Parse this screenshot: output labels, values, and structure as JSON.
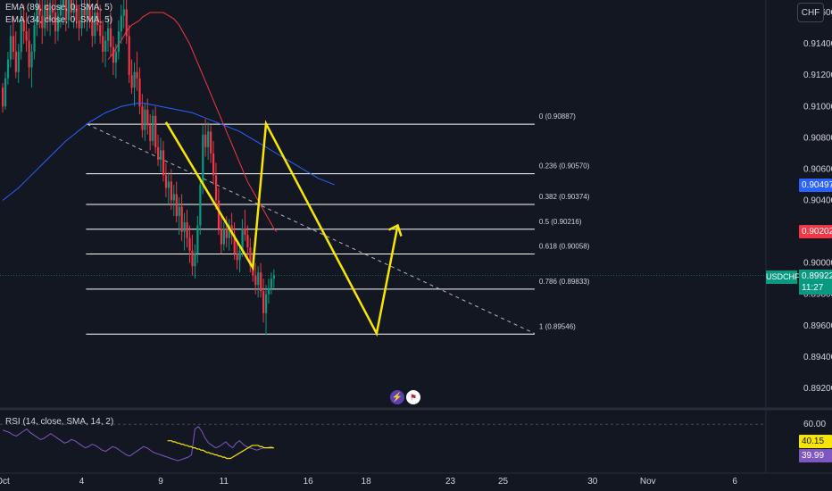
{
  "indicators": {
    "ema89": "EMA (89, close, 0, SMA, 5)",
    "ema34": "EMA (34, close, 0, SMA, 5)",
    "rsi": "RSI (14, close, SMA, 14, 2)"
  },
  "currency_button": "CHF",
  "symbol_tag": "USDCHF",
  "current_price": {
    "value": "0.89922",
    "countdown": "11:27",
    "color": "#089981"
  },
  "price_tags": [
    {
      "value": "0.90497",
      "color": "#2962ff",
      "price": 0.90497
    },
    {
      "value": "0.90202",
      "color": "#f23645",
      "price": 0.90202
    }
  ],
  "rsi_tags": [
    {
      "value": "40.15",
      "color": "#f7e600",
      "text_color": "#131722",
      "level": 40.15
    },
    {
      "value": "39.99",
      "color": "#7e57c2",
      "text_color": "#ffffff",
      "level": 39.99
    }
  ],
  "news_icons": [
    "lightning-icon",
    "us-flag-icon"
  ],
  "colors": {
    "up": "#089981",
    "down": "#f23645",
    "ema34": "#f23645",
    "ema89": "#2962ff",
    "pattern": "#f7e600",
    "fib": "#ffffff",
    "rsi": "#7e57c2",
    "rsi_ma": "#f7e600"
  },
  "chart_data": {
    "type": "candlestick",
    "symbol": "USDCHF",
    "y_axis_ticks": [
      0.916,
      0.914,
      0.912,
      0.91,
      0.908,
      0.906,
      0.904,
      0.902,
      0.9,
      0.898,
      0.896,
      0.894,
      0.892
    ],
    "y_axis_labels": [
      "0.91600",
      "0.91400",
      "0.91200",
      "0.91000",
      "0.90800",
      "0.90600",
      "0.90400",
      "0.90200",
      "0.90000",
      "0.89800",
      "0.89600",
      "0.89400",
      "0.89200"
    ],
    "ylim": [
      0.8908,
      0.9168
    ],
    "x_axis_labels": [
      {
        "label": "Oct",
        "bar": 0
      },
      {
        "label": "4",
        "bar": 30
      },
      {
        "label": "9",
        "bar": 60
      },
      {
        "label": "11",
        "bar": 84
      },
      {
        "label": "16",
        "bar": 116
      },
      {
        "label": "18",
        "bar": 138
      },
      {
        "label": "23",
        "bar": 170
      },
      {
        "label": "25",
        "bar": 190
      },
      {
        "label": "30",
        "bar": 224
      },
      {
        "label": "Nov",
        "bar": 245
      },
      {
        "label": "6",
        "bar": 278
      }
    ],
    "fib_levels": [
      {
        "ratio": "0",
        "price": 0.90887,
        "label": "0 (0.90887)"
      },
      {
        "ratio": "0.236",
        "price": 0.9057,
        "label": "0.236 (0.90570)"
      },
      {
        "ratio": "0.382",
        "price": 0.90374,
        "label": "0.382 (0.90374)"
      },
      {
        "ratio": "0.5",
        "price": 0.90216,
        "label": "0.5 (0.90216)"
      },
      {
        "ratio": "0.618",
        "price": 0.90058,
        "label": "0.618 (0.90058)"
      },
      {
        "ratio": "0.786",
        "price": 0.89833,
        "label": "0.786 (0.89833)"
      },
      {
        "ratio": "1",
        "price": 0.89546,
        "label": "1 (0.89546)"
      }
    ],
    "fib_range_bars": [
      32,
      202
    ],
    "candles": [
      [
        0.9112,
        0.9115,
        0.9096,
        0.91
      ],
      [
        0.91,
        0.9122,
        0.9098,
        0.9118
      ],
      [
        0.9118,
        0.9135,
        0.9114,
        0.913
      ],
      [
        0.913,
        0.9152,
        0.9125,
        0.9145
      ],
      [
        0.9145,
        0.9158,
        0.913,
        0.9135
      ],
      [
        0.9135,
        0.9148,
        0.9118,
        0.9122
      ],
      [
        0.9122,
        0.914,
        0.9115,
        0.9135
      ],
      [
        0.9135,
        0.9162,
        0.913,
        0.9155
      ],
      [
        0.9155,
        0.9165,
        0.914,
        0.9148
      ],
      [
        0.9148,
        0.916,
        0.9135,
        0.9142
      ],
      [
        0.9142,
        0.915,
        0.9118,
        0.9125
      ],
      [
        0.9125,
        0.914,
        0.9112,
        0.9135
      ],
      [
        0.9135,
        0.916,
        0.913,
        0.9152
      ],
      [
        0.9152,
        0.9172,
        0.9145,
        0.9165
      ],
      [
        0.9165,
        0.9175,
        0.915,
        0.9158
      ],
      [
        0.9158,
        0.9168,
        0.914,
        0.915
      ],
      [
        0.915,
        0.9172,
        0.9145,
        0.9165
      ],
      [
        0.9165,
        0.9175,
        0.9148,
        0.9155
      ],
      [
        0.9155,
        0.917,
        0.9145,
        0.9162
      ],
      [
        0.9162,
        0.9175,
        0.9152,
        0.916
      ],
      [
        0.916,
        0.9168,
        0.914,
        0.9148
      ],
      [
        0.9148,
        0.9165,
        0.9142,
        0.9158
      ],
      [
        0.9158,
        0.9175,
        0.915,
        0.9165
      ],
      [
        0.9165,
        0.9178,
        0.9152,
        0.917
      ],
      [
        0.917,
        0.9176,
        0.9148,
        0.9155
      ],
      [
        0.9155,
        0.917,
        0.915,
        0.9168
      ],
      [
        0.9168,
        0.9176,
        0.9155,
        0.916
      ],
      [
        0.916,
        0.9172,
        0.915,
        0.9165
      ],
      [
        0.9165,
        0.9172,
        0.915,
        0.9155
      ],
      [
        0.9155,
        0.9165,
        0.9142,
        0.915
      ],
      [
        0.915,
        0.9168,
        0.9145,
        0.9162
      ],
      [
        0.9162,
        0.9172,
        0.915,
        0.9158
      ],
      [
        0.9158,
        0.917,
        0.9148,
        0.9165
      ],
      [
        0.9165,
        0.9176,
        0.915,
        0.9155
      ],
      [
        0.9155,
        0.9162,
        0.9138,
        0.9145
      ],
      [
        0.9145,
        0.9165,
        0.914,
        0.916
      ],
      [
        0.916,
        0.9176,
        0.9148,
        0.9152
      ],
      [
        0.9152,
        0.9165,
        0.914,
        0.9145
      ],
      [
        0.9145,
        0.9155,
        0.9128,
        0.9135
      ],
      [
        0.9135,
        0.9148,
        0.9125,
        0.9142
      ],
      [
        0.9142,
        0.9158,
        0.9135,
        0.915
      ],
      [
        0.915,
        0.916,
        0.9132,
        0.9138
      ],
      [
        0.9138,
        0.9145,
        0.912,
        0.9128
      ],
      [
        0.9128,
        0.914,
        0.9118,
        0.9135
      ],
      [
        0.9135,
        0.9155,
        0.913,
        0.9148
      ],
      [
        0.9148,
        0.9165,
        0.914,
        0.9158
      ],
      [
        0.9158,
        0.9176,
        0.915,
        0.9162
      ],
      [
        0.9162,
        0.917,
        0.914,
        0.9145
      ],
      [
        0.9145,
        0.9152,
        0.9115,
        0.912
      ],
      [
        0.912,
        0.913,
        0.9108,
        0.9112
      ],
      [
        0.9112,
        0.9128,
        0.91,
        0.9122
      ],
      [
        0.9122,
        0.9135,
        0.911,
        0.9118
      ],
      [
        0.9118,
        0.9125,
        0.9095,
        0.91
      ],
      [
        0.91,
        0.9108,
        0.908,
        0.9085
      ],
      [
        0.9085,
        0.9102,
        0.9078,
        0.9098
      ],
      [
        0.9098,
        0.9105,
        0.9082,
        0.9088
      ],
      [
        0.9088,
        0.9095,
        0.9072,
        0.9078
      ],
      [
        0.9078,
        0.9098,
        0.9075,
        0.9094
      ],
      [
        0.9094,
        0.91,
        0.907,
        0.9074
      ],
      [
        0.9074,
        0.9082,
        0.9062,
        0.9066
      ],
      [
        0.9066,
        0.908,
        0.9058,
        0.9072
      ],
      [
        0.9072,
        0.9078,
        0.9052,
        0.9056
      ],
      [
        0.9056,
        0.9064,
        0.9042,
        0.9048
      ],
      [
        0.9048,
        0.9058,
        0.9038,
        0.9052
      ],
      [
        0.9052,
        0.906,
        0.9034,
        0.904
      ],
      [
        0.904,
        0.905,
        0.903,
        0.9044
      ],
      [
        0.9044,
        0.9052,
        0.9026,
        0.903
      ],
      [
        0.903,
        0.9042,
        0.9018,
        0.9036
      ],
      [
        0.9036,
        0.9044,
        0.9014,
        0.902
      ],
      [
        0.902,
        0.9032,
        0.9008,
        0.9026
      ],
      [
        0.9026,
        0.9034,
        0.901,
        0.9016
      ],
      [
        0.9016,
        0.9024,
        0.9,
        0.9008
      ],
      [
        0.9008,
        0.9018,
        0.8992,
        0.8998
      ],
      [
        0.8998,
        0.9012,
        0.899,
        0.9006
      ],
      [
        0.9006,
        0.903,
        0.9,
        0.9024
      ],
      [
        0.9024,
        0.9055,
        0.9018,
        0.905
      ],
      [
        0.905,
        0.9088,
        0.9044,
        0.9082
      ],
      [
        0.9082,
        0.9092,
        0.9068,
        0.9074
      ],
      [
        0.9074,
        0.909,
        0.9066,
        0.9084
      ],
      [
        0.9084,
        0.9088,
        0.9064,
        0.907
      ],
      [
        0.907,
        0.9078,
        0.905,
        0.9056
      ],
      [
        0.9056,
        0.9064,
        0.9034,
        0.904
      ],
      [
        0.904,
        0.9048,
        0.9018,
        0.9022
      ],
      [
        0.9022,
        0.903,
        0.9006,
        0.9012
      ],
      [
        0.9012,
        0.9026,
        0.9008,
        0.9022
      ],
      [
        0.9022,
        0.903,
        0.901,
        0.9016
      ],
      [
        0.9016,
        0.9028,
        0.9008,
        0.9024
      ],
      [
        0.9024,
        0.9032,
        0.9012,
        0.9018
      ],
      [
        0.9018,
        0.9026,
        0.9002,
        0.9006
      ],
      [
        0.9006,
        0.9014,
        0.8996,
        0.9002
      ],
      [
        0.9002,
        0.9012,
        0.8994,
        0.9008
      ],
      [
        0.9008,
        0.9028,
        0.9004,
        0.9022
      ],
      [
        0.9022,
        0.9034,
        0.9014,
        0.9018
      ],
      [
        0.9018,
        0.9024,
        0.9004,
        0.901
      ],
      [
        0.901,
        0.9016,
        0.8994,
        0.8998
      ],
      [
        0.8998,
        0.9006,
        0.8988,
        0.8992
      ],
      [
        0.8992,
        0.9,
        0.898,
        0.8986
      ],
      [
        0.8986,
        0.8998,
        0.8978,
        0.8994
      ],
      [
        0.8994,
        0.9,
        0.8978,
        0.8982
      ],
      [
        0.8982,
        0.899,
        0.8962,
        0.8968
      ],
      [
        0.8968,
        0.8986,
        0.8954,
        0.898
      ],
      [
        0.898,
        0.899,
        0.8974,
        0.8984
      ],
      [
        0.8984,
        0.8994,
        0.898,
        0.899
      ],
      [
        0.899,
        0.8996,
        0.8984,
        0.8992
      ]
    ],
    "ema34": [
      0.913,
      0.9132,
      0.9134,
      0.9137,
      0.914,
      0.9142,
      0.9145,
      0.9148,
      0.915,
      0.9152,
      0.9153,
      0.9154,
      0.9155,
      0.9157,
      0.9158,
      0.9159,
      0.916,
      0.916,
      0.916,
      0.916,
      0.916,
      0.916,
      0.9159,
      0.9158,
      0.9157,
      0.9156,
      0.9154,
      0.9152,
      0.9149,
      0.9146,
      0.9143,
      0.914,
      0.9136,
      0.9132,
      0.9128,
      0.9124,
      0.912,
      0.9116,
      0.9112,
      0.9108,
      0.9104,
      0.91,
      0.9096,
      0.9092,
      0.9088,
      0.9084,
      0.908,
      0.9076,
      0.9072,
      0.9068,
      0.9064,
      0.906,
      0.9056,
      0.9052,
      0.9049,
      0.9046,
      0.9043,
      0.904,
      0.9037,
      0.9034,
      0.9031,
      0.9028,
      0.9025,
      0.9022,
      0.902
    ],
    "ema34_start_bar": 40,
    "ema89": [
      0.904,
      0.9044,
      0.9048,
      0.9053,
      0.9058,
      0.9063,
      0.9068,
      0.9073,
      0.9078,
      0.9082,
      0.9086,
      0.909,
      0.9093,
      0.9096,
      0.9098,
      0.91,
      0.9101,
      0.9102,
      0.9102,
      0.9101,
      0.91,
      0.9099,
      0.9098,
      0.9097,
      0.9096,
      0.9094,
      0.9092,
      0.909,
      0.9088,
      0.9086,
      0.9084,
      0.9081,
      0.9078,
      0.9075,
      0.9072,
      0.9069,
      0.9066,
      0.9063,
      0.906,
      0.9057,
      0.9054,
      0.9052,
      0.905
    ],
    "ema89_start_bar": 0,
    "ema89_step": 3,
    "rsi": {
      "ylim": [
        20,
        70
      ],
      "ticks": [
        60
      ],
      "tick_labels": [
        "60.00"
      ],
      "rsi_line": [
        55,
        54,
        53,
        51,
        50,
        52,
        54,
        56,
        53,
        51,
        49,
        47,
        48,
        50,
        52,
        50,
        48,
        46,
        44,
        45,
        47,
        46,
        44,
        42,
        40,
        41,
        43,
        42,
        40,
        38,
        37,
        39,
        41,
        40,
        38,
        36,
        34,
        33,
        35,
        37,
        39,
        41,
        40,
        38,
        36,
        35,
        34,
        33,
        32,
        31,
        30,
        29,
        30,
        31,
        32,
        34,
        56,
        58,
        54,
        48,
        44,
        42,
        40,
        41,
        43,
        45,
        42,
        40,
        44,
        46,
        43,
        41,
        40,
        39,
        38,
        39,
        40,
        40,
        41,
        40
      ],
      "rsi_ma": [
        46,
        46,
        46,
        45,
        45,
        44,
        44,
        43,
        43,
        42,
        42,
        41,
        41,
        40,
        40,
        39,
        39,
        38,
        38,
        37,
        36,
        36,
        35,
        35,
        34,
        34,
        33,
        33,
        32,
        32,
        31,
        31,
        31,
        32,
        33,
        34,
        35,
        36,
        37,
        38,
        39,
        40,
        41,
        42,
        42,
        42,
        42,
        41,
        41,
        40,
        40,
        40,
        40,
        40,
        40
      ],
      "rsi_ma_start_bar": 48
    }
  }
}
